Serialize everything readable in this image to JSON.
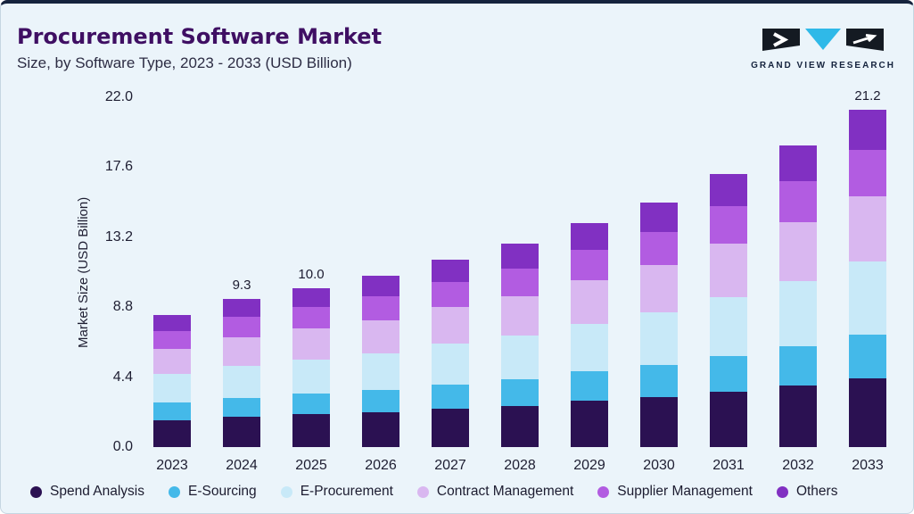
{
  "header": {
    "title": "Procurement Software Market",
    "subtitle": "Size, by Software Type, 2023 - 2033 (USD Billion)",
    "brand": "GRAND VIEW RESEARCH"
  },
  "colors": {
    "background": "#ebf4fa",
    "top_bar": "#15233d",
    "title_text": "#3f0f63",
    "brand_cyan": "#2fb9e8",
    "brand_dark": "#141a22"
  },
  "chart_data": {
    "type": "bar",
    "stacked": true,
    "title": "Procurement Software Market Size, by Software Type, 2023 - 2033 (USD Billion)",
    "xlabel": "",
    "ylabel": "Market Size (USD Billion)",
    "ylim": [
      0,
      22.0
    ],
    "yticks": [
      0.0,
      4.4,
      8.8,
      13.2,
      17.6,
      22.0
    ],
    "grid": false,
    "legend_position": "bottom",
    "categories": [
      "2023",
      "2024",
      "2025",
      "2026",
      "2027",
      "2028",
      "2029",
      "2030",
      "2031",
      "2032",
      "2033"
    ],
    "bar_value_labels": [
      "",
      "9.3",
      "10.0",
      "",
      "",
      "",
      "",
      "",
      "",
      "",
      "21.2"
    ],
    "totals": [
      8.3,
      9.3,
      10.0,
      10.8,
      11.8,
      12.8,
      14.1,
      15.4,
      17.2,
      19.0,
      21.2
    ],
    "series": [
      {
        "name": "Spend Analysis",
        "color": "#2b1152",
        "values": [
          1.7,
          1.9,
          2.05,
          2.2,
          2.4,
          2.6,
          2.9,
          3.15,
          3.5,
          3.9,
          4.35
        ]
      },
      {
        "name": "E-Sourcing",
        "color": "#44b9e9",
        "values": [
          1.1,
          1.2,
          1.3,
          1.4,
          1.55,
          1.65,
          1.85,
          2.0,
          2.25,
          2.45,
          2.75
        ]
      },
      {
        "name": "E-Procurement",
        "color": "#c8e9f8",
        "values": [
          1.8,
          2.0,
          2.15,
          2.3,
          2.55,
          2.75,
          3.0,
          3.3,
          3.7,
          4.1,
          4.55
        ]
      },
      {
        "name": "Contract Management",
        "color": "#d9b7f0",
        "values": [
          1.6,
          1.8,
          1.95,
          2.1,
          2.3,
          2.5,
          2.75,
          3.0,
          3.35,
          3.7,
          4.15
        ]
      },
      {
        "name": "Supplier Management",
        "color": "#b25ce1",
        "values": [
          1.1,
          1.3,
          1.35,
          1.5,
          1.6,
          1.75,
          1.9,
          2.1,
          2.35,
          2.6,
          2.9
        ]
      },
      {
        "name": "Others",
        "color": "#8130c2",
        "values": [
          1.0,
          1.1,
          1.2,
          1.3,
          1.4,
          1.55,
          1.7,
          1.85,
          2.05,
          2.25,
          2.5
        ]
      }
    ]
  }
}
